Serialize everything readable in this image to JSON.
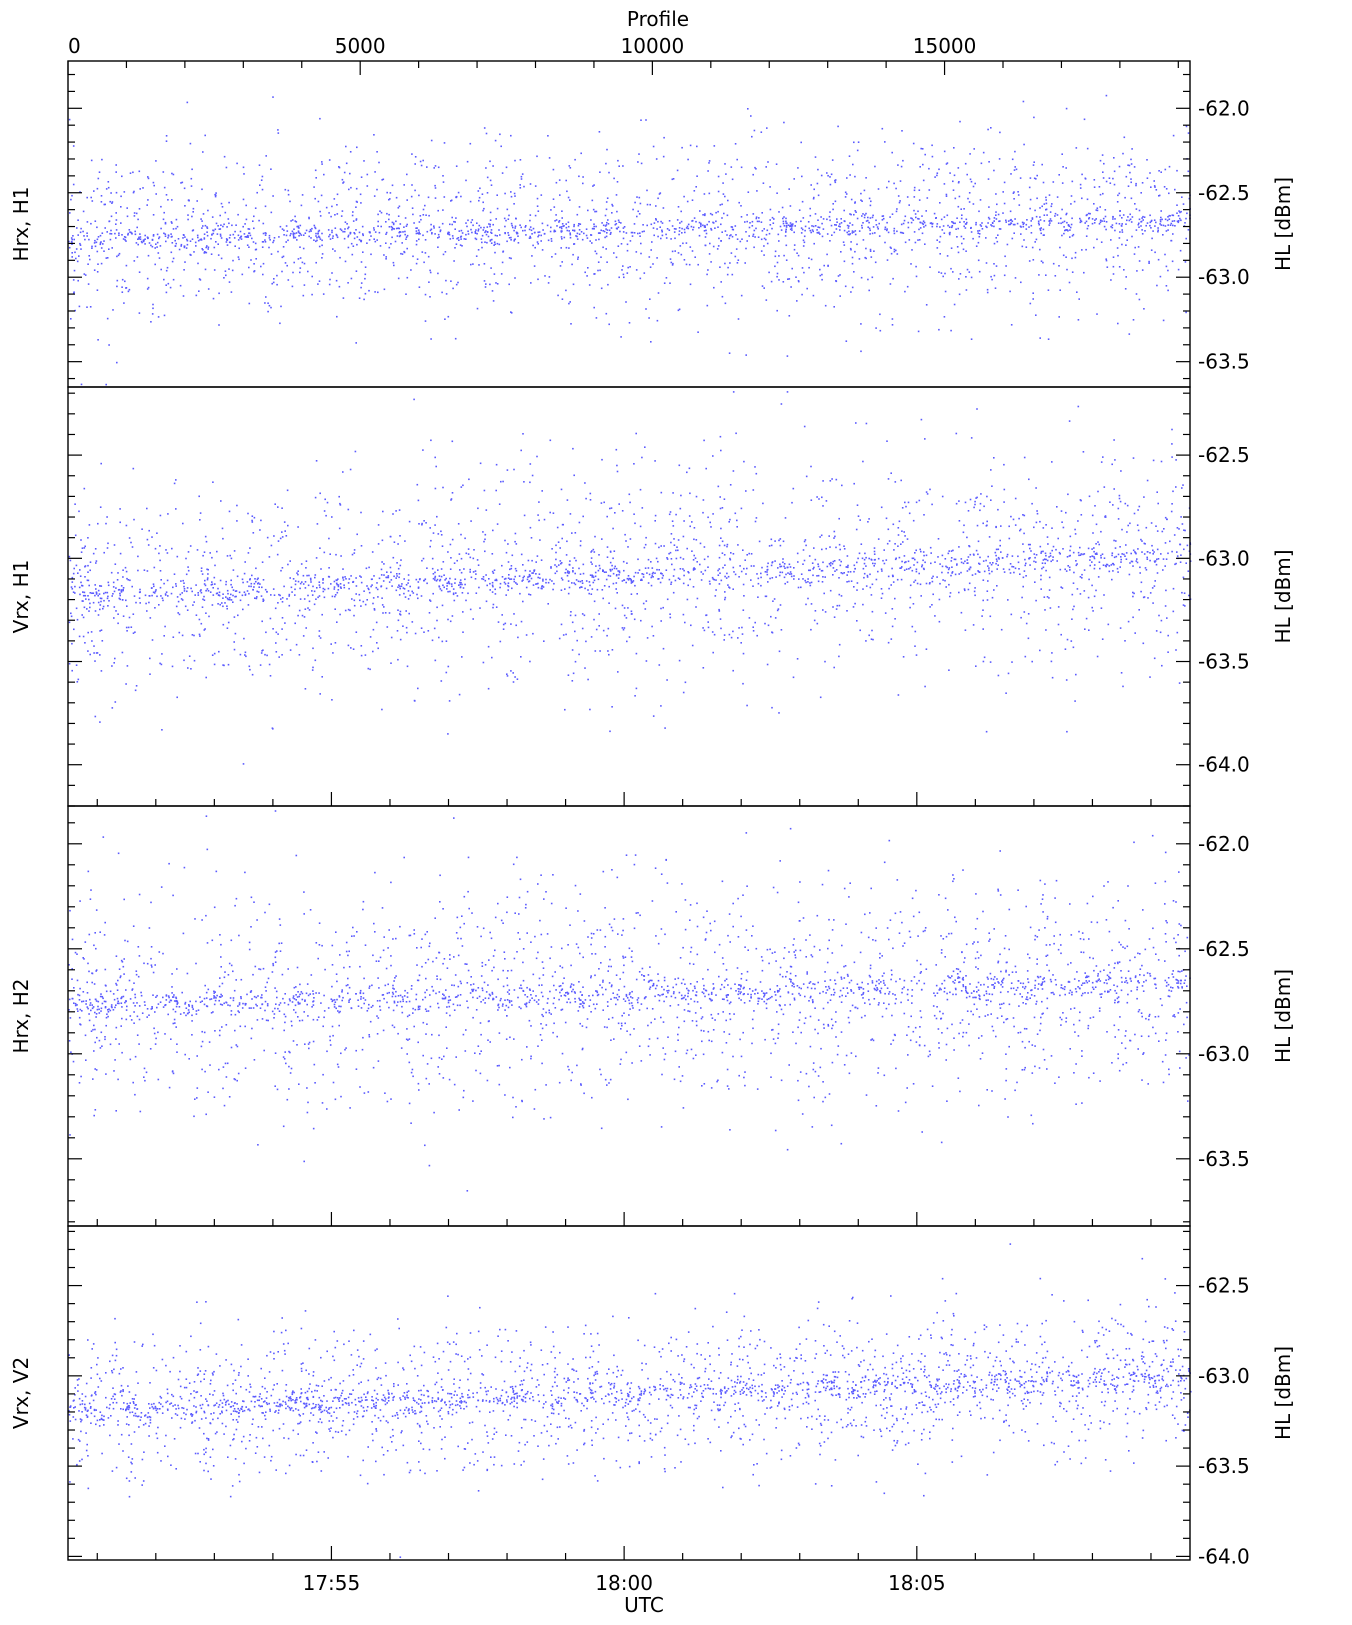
{
  "figure": {
    "top_axis_label": "Profile",
    "bottom_axis_label": "UTC"
  },
  "colors": {
    "points": "#5b5bff",
    "axes": "#000000"
  },
  "chart_data": [
    {
      "type": "scatter",
      "panel_label": "Hrx, H1",
      "ylabel": "HL [dBm]",
      "ylim": [
        -63.65,
        -61.72
      ],
      "yticks": [
        -62.0,
        -62.5,
        -63.0,
        -63.5
      ],
      "ytick_labels": [
        "-62.0",
        "-62.5",
        "-63.0",
        "-63.5"
      ],
      "xlabel_top": "Profile",
      "xlim_profile": [
        0,
        19200
      ],
      "xticks_profile": [
        0,
        5000,
        10000,
        15000
      ],
      "xtick_labels_profile": [
        "0",
        "5000",
        "10000",
        "15000"
      ],
      "series": [
        {
          "profile": [
            0,
            19200
          ],
          "center_dbm": [
            -62.77,
            -62.66
          ],
          "spread_dbm": [
            0.26,
            0.26
          ],
          "num_points": 1900
        }
      ]
    },
    {
      "type": "scatter",
      "panel_label": "Vrx, H1",
      "ylabel": "HL [dBm]",
      "ylim": [
        -64.2,
        -62.17
      ],
      "yticks": [
        -62.5,
        -63.0,
        -63.5,
        -64.0
      ],
      "ytick_labels": [
        "-62.5",
        "-63.0",
        "-63.5",
        "-64.0"
      ],
      "xlim_profile": [
        0,
        19200
      ],
      "series": [
        {
          "profile": [
            0,
            19200
          ],
          "center_dbm": [
            -63.18,
            -62.98
          ],
          "spread_dbm": [
            0.27,
            0.27
          ],
          "num_points": 1900
        }
      ]
    },
    {
      "type": "scatter",
      "panel_label": "Hrx, H2",
      "ylabel": "HL [dBm]",
      "ylim": [
        -63.82,
        -61.82
      ],
      "yticks": [
        -62.0,
        -62.5,
        -63.0,
        -63.5
      ],
      "ytick_labels": [
        "-62.0",
        "-62.5",
        "-63.0",
        "-63.5"
      ],
      "xlim_profile": [
        0,
        19200
      ],
      "series": [
        {
          "profile": [
            0,
            19200
          ],
          "center_dbm": [
            -62.77,
            -62.66
          ],
          "spread_dbm": [
            0.27,
            0.27
          ],
          "num_points": 1900
        }
      ]
    },
    {
      "type": "scatter",
      "panel_label": "Vrx, V2",
      "ylabel": "HL [dBm]",
      "ylim": [
        -64.02,
        -62.17
      ],
      "yticks": [
        -62.5,
        -63.0,
        -63.5,
        -64.0
      ],
      "ytick_labels": [
        "-62.5",
        "-63.0",
        "-63.5",
        "-64.0"
      ],
      "xlabel": "UTC",
      "xlim_utc": [
        "17:50:30",
        "18:09:40"
      ],
      "xticks_utc": [
        "17:55",
        "18:00",
        "18:05"
      ],
      "xtick_labels_utc": [
        "17:55",
        "18:00",
        "18:05"
      ],
      "series": [
        {
          "profile": [
            0,
            19200
          ],
          "center_dbm": [
            -63.19,
            -63.0
          ],
          "spread_dbm": [
            0.2,
            0.2
          ],
          "num_points": 1900
        }
      ]
    }
  ]
}
